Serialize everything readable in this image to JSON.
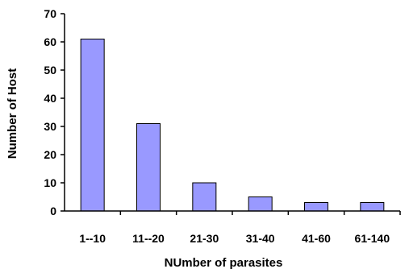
{
  "chart_data": {
    "type": "bar",
    "categories": [
      "1--10",
      "11--20",
      "21-30",
      "31-40",
      "41-60",
      "61-140"
    ],
    "values": [
      61,
      31,
      10,
      5,
      3,
      3
    ],
    "xlabel": "NUmber of parasites",
    "ylabel": "Number of Host",
    "ylim": [
      0,
      70
    ],
    "yticks": [
      0,
      10,
      20,
      30,
      40,
      50,
      60,
      70
    ],
    "grid": false,
    "bar_color": "#9999ff",
    "bar_edge_color": "#000000"
  }
}
